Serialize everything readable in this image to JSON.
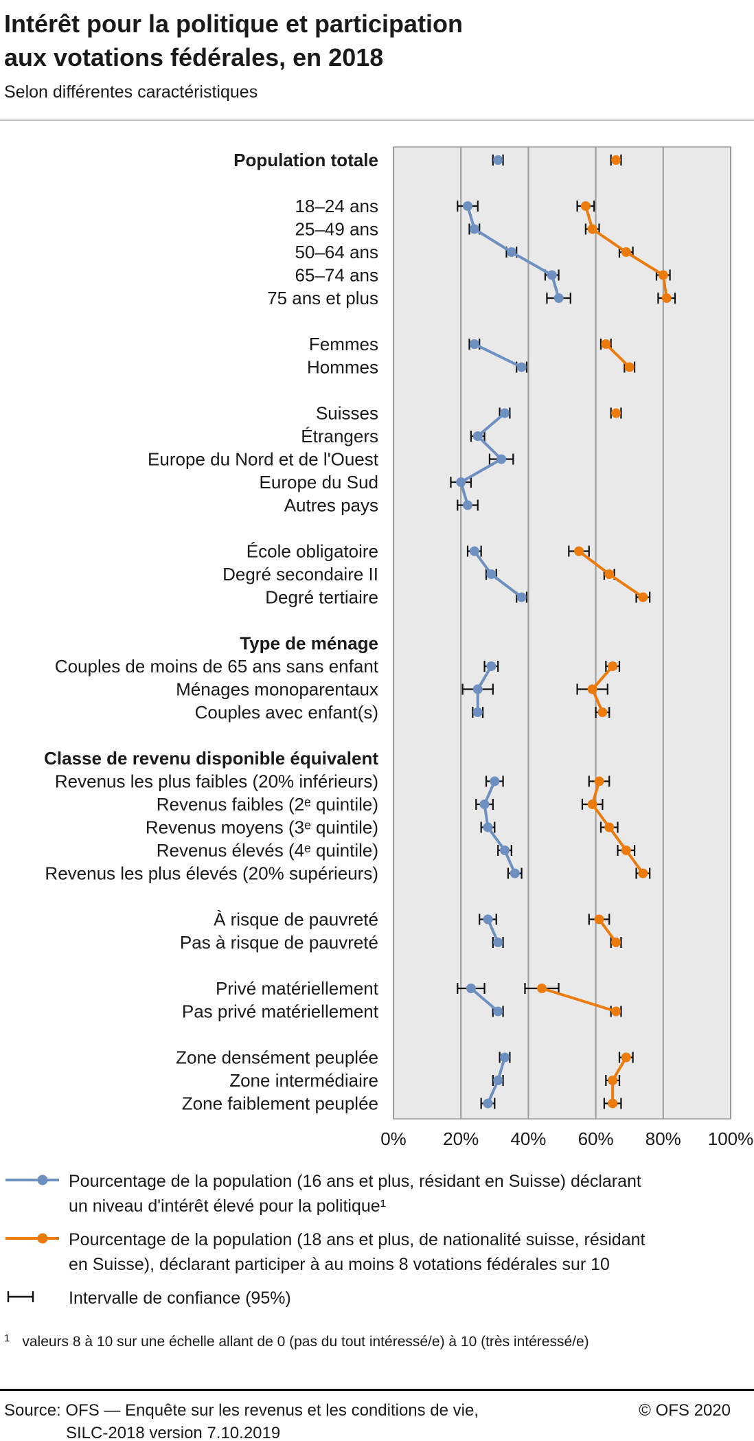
{
  "header": {
    "title_line1": "Intérêt pour la politique et participation",
    "title_line2": "aux votations fédérales, en 2018",
    "subtitle": "Selon différentes caractéristiques"
  },
  "chart_data": {
    "type": "scatter",
    "subtype": "dot-plot-with-95pct-confidence-intervals",
    "unit": "%",
    "grid": true,
    "x_axis": {
      "range": [
        0,
        100
      ],
      "ticks": [
        0,
        20,
        40,
        60,
        80,
        100
      ],
      "tick_labels": [
        "0%",
        "20%",
        "40%",
        "60%",
        "80%",
        "100%"
      ]
    },
    "panel_fill": "#e9e9e9",
    "grid_color": "#9b9b9b",
    "ci_color": "#111111",
    "series": [
      {
        "id": "interest",
        "name": "Niveau d'intérêt élevé pour la politique",
        "color": "#6d90c1"
      },
      {
        "id": "participation",
        "name": "Participe à au moins 8 votations fédérales sur 10",
        "color": "#ec7b0d"
      }
    ],
    "rows": [
      {
        "t": "data",
        "g": "total",
        "bold": true,
        "label": "Population totale",
        "interest": {
          "v": 31,
          "ci": [
            29.5,
            32.5
          ]
        },
        "participation": {
          "v": 66,
          "ci": [
            64.5,
            67.5
          ]
        }
      },
      {
        "t": "gap"
      },
      {
        "t": "data",
        "g": "age",
        "label": "18–24 ans",
        "interest": {
          "v": 22,
          "ci": [
            19,
            25
          ]
        },
        "participation": {
          "v": 57,
          "ci": [
            54.5,
            59.5
          ]
        }
      },
      {
        "t": "data",
        "g": "age",
        "label": "25–49 ans",
        "interest": {
          "v": 24,
          "ci": [
            22.5,
            25.5
          ]
        },
        "participation": {
          "v": 59,
          "ci": [
            57,
            61
          ]
        }
      },
      {
        "t": "data",
        "g": "age",
        "label": "50–64 ans",
        "interest": {
          "v": 35,
          "ci": [
            33.5,
            36.5
          ]
        },
        "participation": {
          "v": 69,
          "ci": [
            67,
            71
          ]
        }
      },
      {
        "t": "data",
        "g": "age",
        "label": "65–74 ans",
        "interest": {
          "v": 47,
          "ci": [
            45,
            49
          ]
        },
        "participation": {
          "v": 80,
          "ci": [
            78,
            82
          ]
        }
      },
      {
        "t": "data",
        "g": "age",
        "label": "75 ans et plus",
        "interest": {
          "v": 49,
          "ci": [
            45.5,
            52.5
          ]
        },
        "participation": {
          "v": 81,
          "ci": [
            78.5,
            83.5
          ]
        }
      },
      {
        "t": "gap"
      },
      {
        "t": "data",
        "g": "sexe",
        "label": "Femmes",
        "interest": {
          "v": 24,
          "ci": [
            22.5,
            25.5
          ]
        },
        "participation": {
          "v": 63,
          "ci": [
            61.5,
            64.5
          ]
        }
      },
      {
        "t": "data",
        "g": "sexe",
        "label": "Hommes",
        "interest": {
          "v": 38,
          "ci": [
            36.5,
            39.5
          ]
        },
        "participation": {
          "v": 70,
          "ci": [
            68.5,
            71.5
          ]
        }
      },
      {
        "t": "gap"
      },
      {
        "t": "data",
        "g": "nationalite",
        "label": "Suisses",
        "interest": {
          "v": 33,
          "ci": [
            31.5,
            34.5
          ]
        },
        "participation": {
          "v": 66,
          "ci": [
            64.5,
            67.5
          ]
        }
      },
      {
        "t": "data",
        "g": "nationalite",
        "label": "Étrangers",
        "interest": {
          "v": 25,
          "ci": [
            23,
            27
          ]
        }
      },
      {
        "t": "data",
        "g": "nationalite",
        "label": "Europe du Nord et de l'Ouest",
        "interest": {
          "v": 32,
          "ci": [
            28.5,
            35.5
          ]
        }
      },
      {
        "t": "data",
        "g": "nationalite",
        "label": "Europe du Sud",
        "interest": {
          "v": 20,
          "ci": [
            17,
            23
          ]
        }
      },
      {
        "t": "data",
        "g": "nationalite",
        "label": "Autres pays",
        "interest": {
          "v": 22,
          "ci": [
            19,
            25
          ]
        }
      },
      {
        "t": "gap"
      },
      {
        "t": "data",
        "g": "formation",
        "label": "École obligatoire",
        "interest": {
          "v": 24,
          "ci": [
            22,
            26
          ]
        },
        "participation": {
          "v": 55,
          "ci": [
            52,
            58
          ]
        }
      },
      {
        "t": "data",
        "g": "formation",
        "label": "Degré secondaire II",
        "interest": {
          "v": 29,
          "ci": [
            27.5,
            30.5
          ]
        },
        "participation": {
          "v": 64,
          "ci": [
            62.5,
            65.5
          ]
        }
      },
      {
        "t": "data",
        "g": "formation",
        "label": "Degré tertiaire",
        "interest": {
          "v": 38,
          "ci": [
            36.5,
            39.5
          ]
        },
        "participation": {
          "v": 74,
          "ci": [
            72,
            76
          ]
        }
      },
      {
        "t": "gap"
      },
      {
        "t": "header",
        "label": "Type de ménage"
      },
      {
        "t": "data",
        "g": "menage",
        "label": "Couples de moins de 65 ans sans enfant",
        "interest": {
          "v": 29,
          "ci": [
            27,
            31
          ]
        },
        "participation": {
          "v": 65,
          "ci": [
            63,
            67
          ]
        }
      },
      {
        "t": "data",
        "g": "menage",
        "label": "Ménages monoparentaux",
        "interest": {
          "v": 25,
          "ci": [
            20.5,
            29.5
          ]
        },
        "participation": {
          "v": 59,
          "ci": [
            54.5,
            63.5
          ]
        }
      },
      {
        "t": "data",
        "g": "menage",
        "label": "Couples avec enfant(s)",
        "interest": {
          "v": 25,
          "ci": [
            23.5,
            26.5
          ]
        },
        "participation": {
          "v": 62,
          "ci": [
            60,
            64
          ]
        }
      },
      {
        "t": "gap"
      },
      {
        "t": "header",
        "label": "Classe de revenu disponible équivalent"
      },
      {
        "t": "data",
        "g": "revenu",
        "label": "Revenus les plus faibles (20% inférieurs)",
        "interest": {
          "v": 30,
          "ci": [
            27.5,
            32.5
          ]
        },
        "participation": {
          "v": 61,
          "ci": [
            58,
            64
          ]
        }
      },
      {
        "t": "data",
        "g": "revenu",
        "label": "Revenus faibles (2ᵉ quintile)",
        "interest": {
          "v": 27,
          "ci": [
            24.5,
            29.5
          ]
        },
        "participation": {
          "v": 59,
          "ci": [
            56,
            62
          ]
        }
      },
      {
        "t": "data",
        "g": "revenu",
        "label": "Revenus moyens (3ᵉ quintile)",
        "interest": {
          "v": 28,
          "ci": [
            26,
            30
          ]
        },
        "participation": {
          "v": 64,
          "ci": [
            61.5,
            66.5
          ]
        }
      },
      {
        "t": "data",
        "g": "revenu",
        "label": "Revenus élevés (4ᵉ quintile)",
        "interest": {
          "v": 33,
          "ci": [
            31,
            35
          ]
        },
        "participation": {
          "v": 69,
          "ci": [
            66.5,
            71.5
          ]
        }
      },
      {
        "t": "data",
        "g": "revenu",
        "label": "Revenus les plus élevés (20% supérieurs)",
        "interest": {
          "v": 36,
          "ci": [
            34,
            38
          ]
        },
        "participation": {
          "v": 74,
          "ci": [
            72,
            76
          ]
        }
      },
      {
        "t": "gap"
      },
      {
        "t": "data",
        "g": "pauvrete",
        "label": "À risque de pauvreté",
        "interest": {
          "v": 28,
          "ci": [
            25.5,
            30.5
          ]
        },
        "participation": {
          "v": 61,
          "ci": [
            58,
            64
          ]
        }
      },
      {
        "t": "data",
        "g": "pauvrete",
        "label": "Pas à risque de pauvreté",
        "interest": {
          "v": 31,
          "ci": [
            29.5,
            32.5
          ]
        },
        "participation": {
          "v": 66,
          "ci": [
            64.5,
            67.5
          ]
        }
      },
      {
        "t": "gap"
      },
      {
        "t": "data",
        "g": "privation",
        "label": "Privé matériellement",
        "interest": {
          "v": 23,
          "ci": [
            19,
            27
          ]
        },
        "participation": {
          "v": 44,
          "ci": [
            39,
            49
          ]
        }
      },
      {
        "t": "data",
        "g": "privation",
        "label": "Pas privé matériellement",
        "interest": {
          "v": 31,
          "ci": [
            29.5,
            32.5
          ]
        },
        "participation": {
          "v": 66,
          "ci": [
            64.5,
            67.5
          ]
        }
      },
      {
        "t": "gap"
      },
      {
        "t": "data",
        "g": "zone",
        "label": "Zone densément peuplée",
        "interest": {
          "v": 33,
          "ci": [
            31.5,
            34.5
          ]
        },
        "participation": {
          "v": 69,
          "ci": [
            67,
            71
          ]
        }
      },
      {
        "t": "data",
        "g": "zone",
        "label": "Zone intermédiaire",
        "interest": {
          "v": 31,
          "ci": [
            29.5,
            32.5
          ]
        },
        "participation": {
          "v": 65,
          "ci": [
            63,
            67
          ]
        }
      },
      {
        "t": "data",
        "g": "zone",
        "label": "Zone faiblement peuplée",
        "interest": {
          "v": 28,
          "ci": [
            26,
            30
          ]
        },
        "participation": {
          "v": 65,
          "ci": [
            62.5,
            67.5
          ]
        }
      }
    ]
  },
  "legend": {
    "interest": [
      "Pourcentage de la population (16 ans et plus, résidant en Suisse) déclarant",
      "un niveau d'intérêt élevé pour la politique¹"
    ],
    "participation": [
      "Pourcentage de la population (18 ans et plus, de nationalité suisse, résidant",
      "en Suisse), déclarant participer à au moins 8 votations fédérales sur 10"
    ],
    "ci": "Intervalle de confiance (95%)"
  },
  "footnote": {
    "marker": "1",
    "text": "valeurs 8 à 10 sur une échelle allant de 0 (pas du tout intéressé/e) à 10 (très intéressé/e)"
  },
  "footer": {
    "source_line1": "Source: OFS — Enquête sur les revenus et les conditions de vie,",
    "source_line2": "SILC-2018 version 7.10.2019",
    "copyright": "© OFS 2020"
  }
}
